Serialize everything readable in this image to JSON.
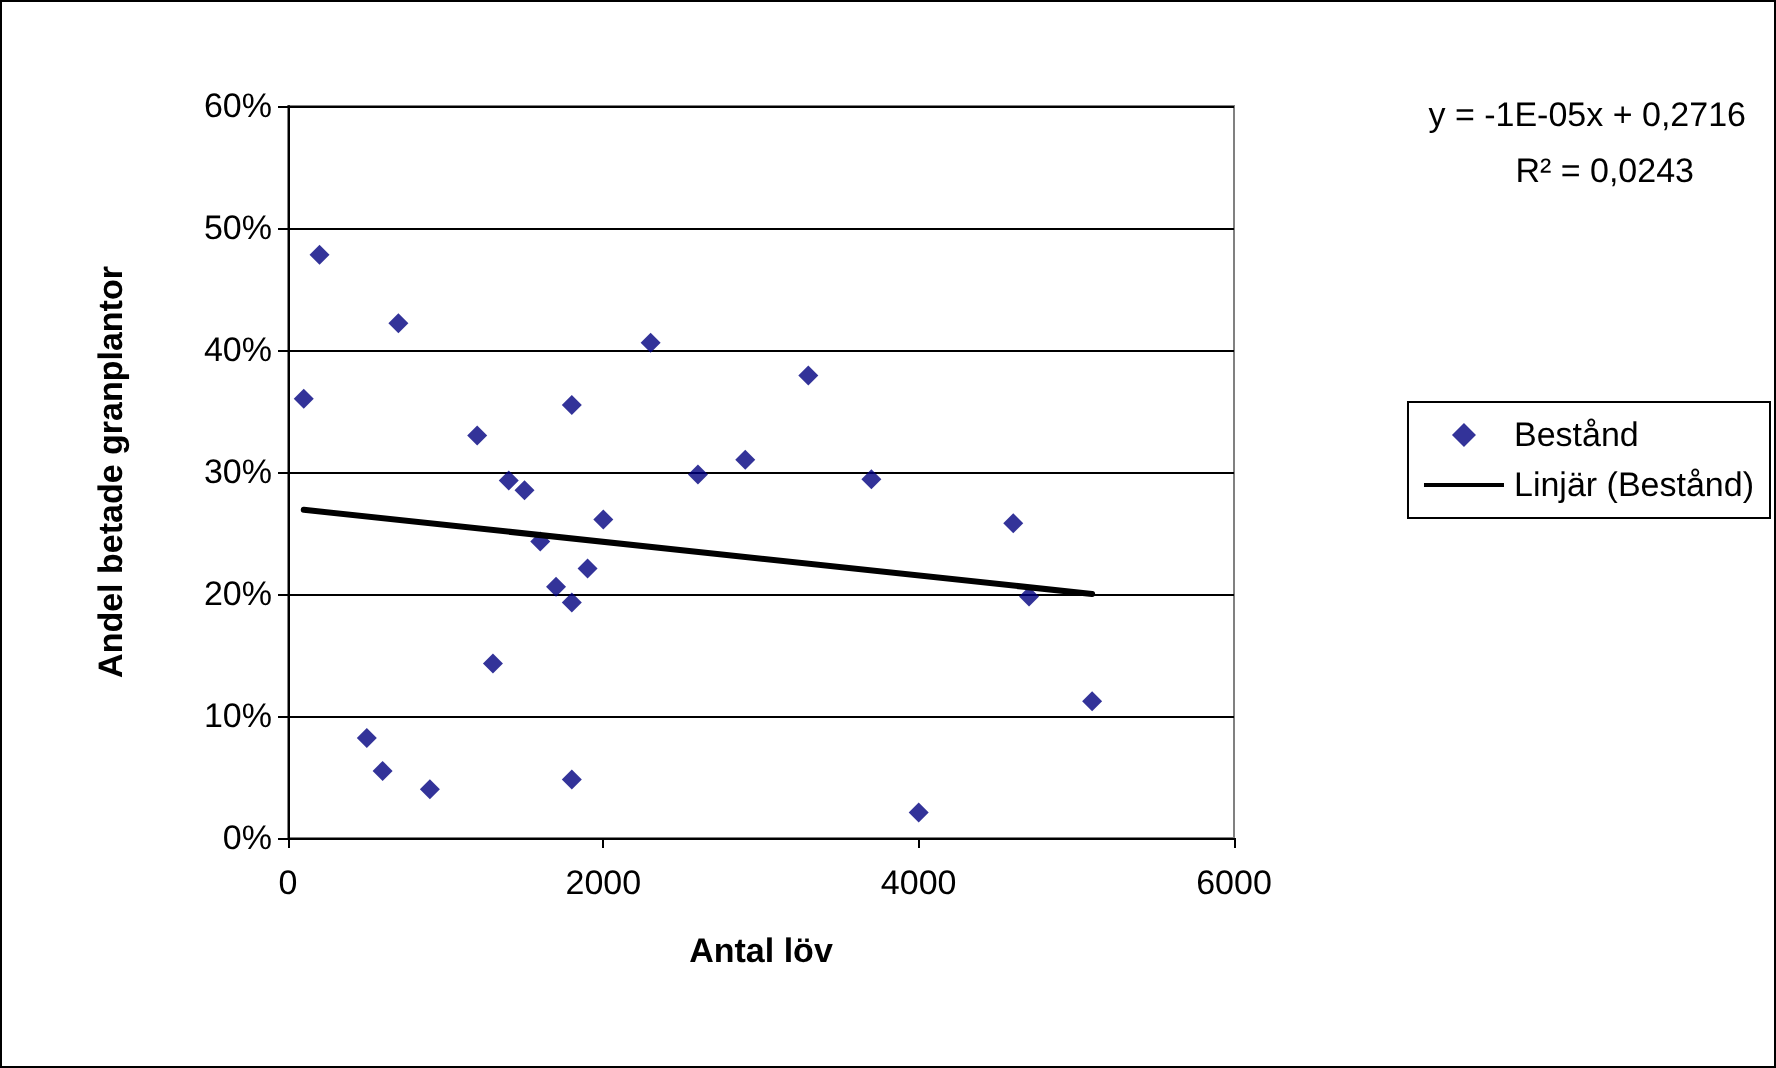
{
  "chart_data": {
    "type": "scatter",
    "xlabel": "Antal löv",
    "ylabel": "Andel betade granplantor",
    "annotations": [
      "y = -1E-05x + 0,2716",
      "R² = 0,0243"
    ],
    "series": [
      {
        "name": "Bestånd",
        "color": "#000080",
        "marker": "diamond",
        "x": [
          100,
          200,
          500,
          600,
          700,
          900,
          1200,
          1300,
          1400,
          1500,
          1600,
          1700,
          1800,
          1800,
          1800,
          1900,
          2000,
          2300,
          2600,
          2900,
          3300,
          3700,
          4000,
          4600,
          4700,
          5100
        ],
        "values": [
          36,
          47.8,
          8.2,
          5.5,
          42.2,
          4,
          33,
          14.3,
          29.3,
          28.5,
          24.3,
          20.6,
          35.5,
          19.3,
          4.8,
          22.1,
          26.1,
          40.6,
          29.8,
          31,
          37.9,
          29.4,
          2.1,
          25.8,
          19.8,
          11.2
        ]
      },
      {
        "name": "Linjär (Bestånd)",
        "type": "line",
        "color": "#000000",
        "marker": "none",
        "line_style": "solid",
        "x": [
          100,
          5100
        ],
        "values": [
          26.9,
          20
        ]
      }
    ],
    "xlim": [
      0,
      6000
    ],
    "xticks": [
      0,
      2000,
      4000,
      6000
    ],
    "ylim": [
      0,
      60
    ],
    "yticks": [
      {
        "value": 0,
        "label": "0%"
      },
      {
        "value": 10,
        "label": "10%"
      },
      {
        "value": 20,
        "label": "20%"
      },
      {
        "value": 30,
        "label": "30%"
      },
      {
        "value": 40,
        "label": "40%"
      },
      {
        "value": 50,
        "label": "50%"
      },
      {
        "value": 60,
        "label": "60%"
      }
    ],
    "grid": "y",
    "legend": "right"
  }
}
